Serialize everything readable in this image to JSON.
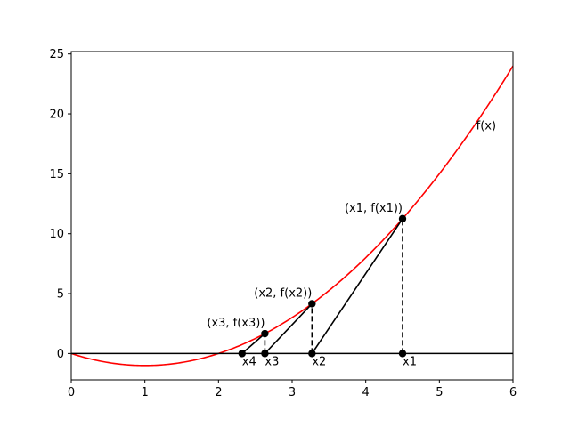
{
  "chart_data": {
    "type": "line",
    "title": "",
    "xlabel": "",
    "ylabel": "",
    "xlim": [
      0,
      6
    ],
    "ylim": [
      -2.2,
      25.2
    ],
    "xticks": [
      0,
      1,
      2,
      3,
      4,
      5,
      6
    ],
    "yticks": [
      0,
      5,
      10,
      15,
      20,
      25
    ],
    "grid": false,
    "function": {
      "label": "f(x)",
      "color": "#ff0000",
      "samples": [
        {
          "x": 0.0,
          "y": 0.0
        },
        {
          "x": 0.25,
          "y": -0.4375
        },
        {
          "x": 0.5,
          "y": -0.75
        },
        {
          "x": 0.75,
          "y": -0.9375
        },
        {
          "x": 1.0,
          "y": -1.0
        },
        {
          "x": 1.25,
          "y": -0.9375
        },
        {
          "x": 1.5,
          "y": -0.75
        },
        {
          "x": 1.75,
          "y": -0.4375
        },
        {
          "x": 2.0,
          "y": 0.0
        },
        {
          "x": 2.25,
          "y": 0.5625
        },
        {
          "x": 2.5,
          "y": 1.25
        },
        {
          "x": 2.75,
          "y": 2.0625
        },
        {
          "x": 3.0,
          "y": 3.0
        },
        {
          "x": 3.25,
          "y": 4.0625
        },
        {
          "x": 3.5,
          "y": 5.25
        },
        {
          "x": 3.75,
          "y": 6.5625
        },
        {
          "x": 4.0,
          "y": 8.0
        },
        {
          "x": 4.25,
          "y": 9.5625
        },
        {
          "x": 4.5,
          "y": 11.25
        },
        {
          "x": 4.75,
          "y": 13.0625
        },
        {
          "x": 5.0,
          "y": 15.0
        },
        {
          "x": 5.25,
          "y": 17.0625
        },
        {
          "x": 5.5,
          "y": 19.25
        },
        {
          "x": 5.75,
          "y": 21.5625
        },
        {
          "x": 6.0,
          "y": 24.0
        }
      ]
    },
    "zero_line": {
      "y": 0,
      "color": "#000000"
    },
    "iterates": [
      {
        "label": "x1",
        "x": 4.5,
        "fx": 11.25,
        "point_label": "(x1, f(x1))"
      },
      {
        "label": "x2",
        "x": 3.27,
        "fx": 4.15,
        "point_label": "(x2, f(x2))"
      },
      {
        "label": "x3",
        "x": 2.63,
        "fx": 1.66,
        "point_label": "(x3, f(x3))"
      },
      {
        "label": "x4",
        "x": 2.32,
        "fx": null,
        "point_label": ""
      }
    ],
    "function_label_position": {
      "x": 5.5,
      "y": 18.7
    }
  }
}
